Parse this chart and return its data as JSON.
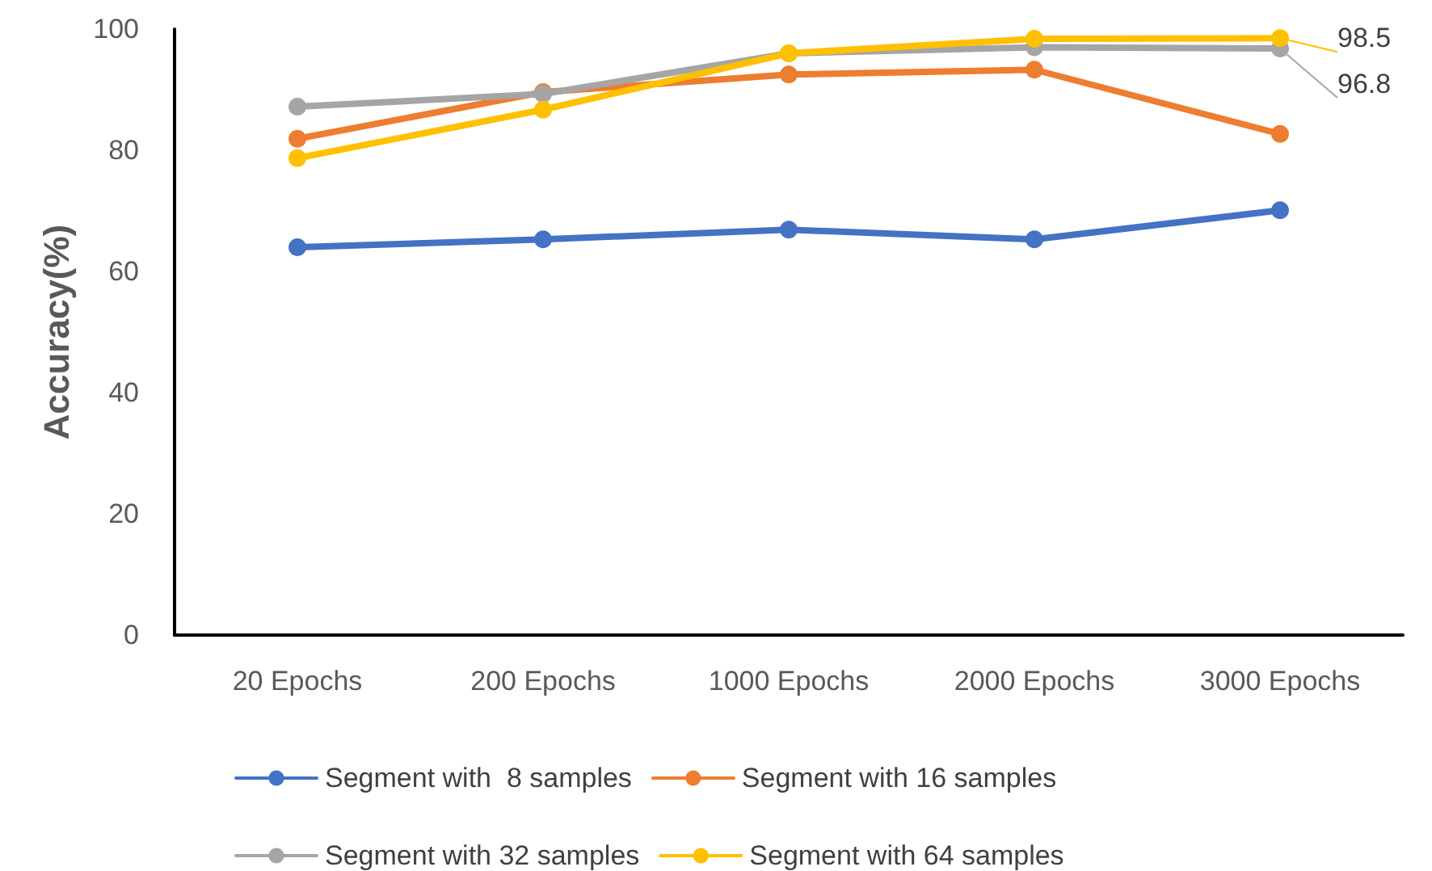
{
  "chart_data": {
    "type": "line",
    "ylabel": "Accuracy(%)",
    "categories": [
      "20 Epochs",
      "200 Epochs",
      "1000 Epochs",
      "2000 Epochs",
      "3000 Epochs"
    ],
    "series": [
      {
        "name": "Segment with  8 samples",
        "color": "#4472c4",
        "values": [
          64,
          65.3,
          66.9,
          65.3,
          70.1
        ]
      },
      {
        "name": "Segment with 16 samples",
        "color": "#ed7d31",
        "values": [
          81.9,
          89.6,
          92.5,
          93.3,
          82.7
        ]
      },
      {
        "name": "Segment with 32 samples",
        "color": "#a5a5a5",
        "values": [
          87.2,
          89.3,
          96,
          97,
          96.8
        ],
        "value_labels": [
          null,
          null,
          null,
          null,
          "96.8"
        ]
      },
      {
        "name": "Segment with 64 samples",
        "color": "#ffc000",
        "values": [
          78.7,
          86.7,
          96,
          98.4,
          98.5
        ],
        "value_labels": [
          null,
          null,
          null,
          null,
          "98.5"
        ]
      }
    ],
    "ylim": [
      0,
      100
    ],
    "yticks": [
      0,
      20,
      40,
      60,
      80,
      100
    ],
    "grid": false,
    "legend": "bottom",
    "marker": "circle",
    "line_style": "solid"
  }
}
